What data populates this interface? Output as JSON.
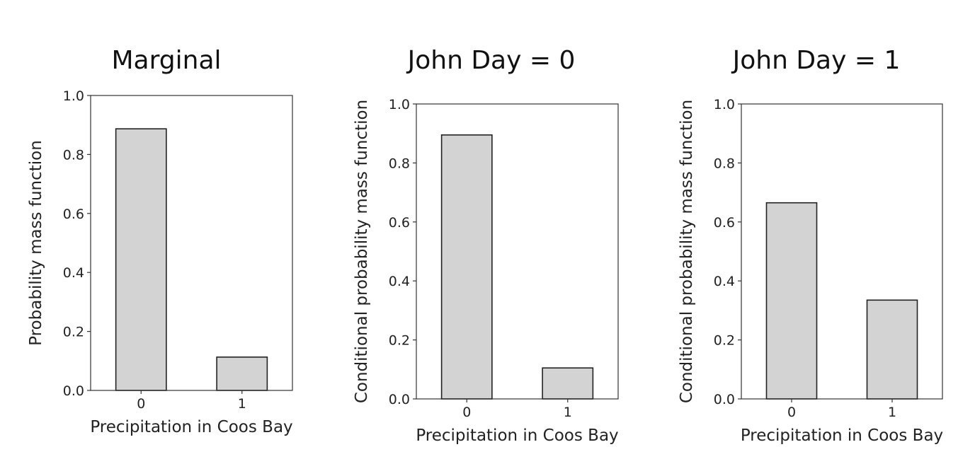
{
  "chart_data": [
    {
      "type": "bar",
      "title": "Marginal",
      "xlabel": "Precipitation in Coos Bay",
      "ylabel": "Probability mass function",
      "categories": [
        "0",
        "1"
      ],
      "values": [
        0.887,
        0.113
      ],
      "ylim": [
        0,
        1.0
      ],
      "yticks": [
        "0.0",
        "0.2",
        "0.4",
        "0.6",
        "0.8",
        "1.0"
      ],
      "grid": false,
      "bar_color": "#d3d3d3"
    },
    {
      "type": "bar",
      "title": "John Day = 0",
      "xlabel": "Precipitation in Coos Bay",
      "ylabel": "Conditional probability mass function",
      "categories": [
        "0",
        "1"
      ],
      "values": [
        0.895,
        0.105
      ],
      "ylim": [
        0,
        1.0
      ],
      "yticks": [
        "0.0",
        "0.2",
        "0.4",
        "0.6",
        "0.8",
        "1.0"
      ],
      "grid": false,
      "bar_color": "#d3d3d3"
    },
    {
      "type": "bar",
      "title": "John Day = 1",
      "xlabel": "Precipitation in Coos Bay",
      "ylabel": "Conditional probability mass function",
      "categories": [
        "0",
        "1"
      ],
      "values": [
        0.665,
        0.335
      ],
      "ylim": [
        0,
        1.0
      ],
      "yticks": [
        "0.0",
        "0.2",
        "0.4",
        "0.6",
        "0.8",
        "1.0"
      ],
      "grid": false,
      "bar_color": "#d3d3d3"
    }
  ]
}
